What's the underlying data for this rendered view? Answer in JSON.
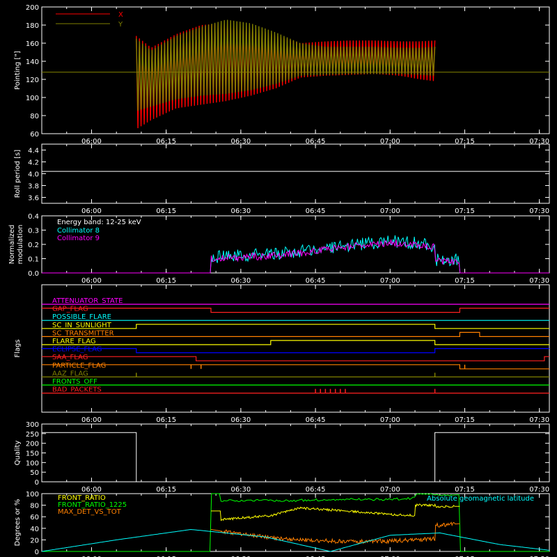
{
  "time_axis": {
    "start": "05:50",
    "end": "07:32",
    "ticks": [
      "06:00",
      "06:15",
      "06:30",
      "06:45",
      "07:00",
      "07:15",
      "07:30"
    ]
  },
  "chart_data": [
    {
      "id": "pointing",
      "type": "line",
      "ylabel": "Pointing [\"]",
      "ylim": [
        60,
        200
      ],
      "yticks": [
        "60",
        "80",
        "100",
        "120",
        "140",
        "160",
        "180",
        "200"
      ],
      "legend": {
        "placement": "top-left",
        "entries": [
          {
            "name": "X",
            "color": "#ff0000"
          },
          {
            "name": "Y",
            "color": "#808000"
          }
        ]
      },
      "baseline": {
        "value": 128,
        "color": "#808000"
      },
      "x_segment": [
        "06:09",
        "07:09"
      ],
      "series": [
        {
          "name": "X",
          "color": "#ff0000",
          "t": [
            "06:09",
            "06:12",
            "06:17",
            "06:22",
            "06:27",
            "06:32",
            "06:37",
            "06:42",
            "06:47",
            "06:52",
            "06:57",
            "07:02",
            "07:06",
            "07:09"
          ],
          "upper": [
            168,
            155,
            170,
            180,
            182,
            178,
            168,
            160,
            162,
            163,
            163,
            162,
            162,
            163
          ],
          "lower": [
            65,
            75,
            88,
            92,
            96,
            102,
            110,
            122,
            124,
            125,
            126,
            124,
            120,
            118
          ]
        },
        {
          "name": "Y",
          "color": "#808000",
          "t": [
            "06:09",
            "06:12",
            "06:17",
            "06:22",
            "06:27",
            "06:32",
            "06:37",
            "06:42",
            "06:47",
            "06:52",
            "06:57",
            "07:02",
            "07:06",
            "07:09"
          ],
          "upper": [
            165,
            152,
            168,
            178,
            186,
            182,
            172,
            160,
            156,
            156,
            156,
            155,
            155,
            156
          ],
          "lower": [
            85,
            90,
            98,
            102,
            104,
            108,
            115,
            124,
            125,
            126,
            126,
            126,
            125,
            124
          ]
        }
      ]
    },
    {
      "id": "roll",
      "type": "line",
      "ylabel": "Roll period [s]",
      "ylim": [
        3.5,
        4.5
      ],
      "yticks": [
        "3.6",
        "3.8",
        "4.0",
        "4.2",
        "4.4"
      ],
      "series": [
        {
          "name": "",
          "color": "#ffffff",
          "t": [
            "05:50",
            "07:32"
          ],
          "y": [
            4.04,
            4.04
          ]
        }
      ]
    },
    {
      "id": "modulation",
      "type": "line",
      "ylabel": [
        "Normalized",
        "modulation"
      ],
      "ylim": [
        0,
        0.4
      ],
      "yticks": [
        "0.0",
        "0.1",
        "0.2",
        "0.3",
        "0.4"
      ],
      "annotation": "Energy band: 12-25 keV",
      "series": [
        {
          "name": "Collimator 8",
          "color": "#00ffff",
          "t": [
            "05:50",
            "06:24",
            "06:24",
            "06:30",
            "06:36",
            "06:42",
            "06:48",
            "06:54",
            "07:00",
            "07:05",
            "07:09",
            "07:09",
            "07:14",
            "07:14",
            "07:32"
          ],
          "y": [
            0,
            0,
            0.11,
            0.12,
            0.13,
            0.15,
            0.18,
            0.2,
            0.22,
            0.21,
            0.19,
            0.09,
            0.09,
            0,
            0
          ]
        },
        {
          "name": "Collimator 9",
          "color": "#ff00ff",
          "t": [
            "05:50",
            "06:24",
            "06:24",
            "06:30",
            "06:36",
            "06:42",
            "06:48",
            "06:54",
            "07:00",
            "07:05",
            "07:09",
            "07:09",
            "07:14",
            "07:14",
            "07:32"
          ],
          "y": [
            0,
            0,
            0.1,
            0.11,
            0.12,
            0.14,
            0.17,
            0.19,
            0.21,
            0.2,
            0.18,
            0.08,
            0.08,
            0,
            0
          ]
        }
      ]
    },
    {
      "id": "flags",
      "type": "line",
      "ylabel": "Flags",
      "series": [
        {
          "name": "ATTENUATOR_STATE",
          "color": "#ff00ff",
          "t": [
            "05:50",
            "07:32"
          ],
          "y": [
            0,
            0
          ]
        },
        {
          "name": "GAP_FLAG",
          "color": "#ff2020",
          "t": [
            "05:50",
            "06:24",
            "06:24",
            "07:14",
            "07:14",
            "07:32"
          ],
          "y": [
            1,
            1,
            0,
            0,
            1,
            1
          ]
        },
        {
          "name": "POSSIBLE_FLARE",
          "color": "#00ffff",
          "t": [
            "05:50",
            "07:32"
          ],
          "y": [
            0,
            0
          ]
        },
        {
          "name": "SC_IN_SUNLIGHT",
          "color": "#ffff00",
          "t": [
            "05:50",
            "06:09",
            "06:09",
            "07:09",
            "07:09",
            "07:32"
          ],
          "y": [
            0,
            0,
            1,
            1,
            0,
            0
          ]
        },
        {
          "name": "SC_TRANSMITTER",
          "color": "#ff8000",
          "t": [
            "05:50",
            "07:14",
            "07:14",
            "07:18",
            "07:18",
            "07:32"
          ],
          "y": [
            0,
            0,
            1,
            1,
            0,
            0
          ]
        },
        {
          "name": "FLARE_FLAG",
          "color": "#ffff00",
          "t": [
            "05:50",
            "06:36",
            "06:36",
            "07:09",
            "07:09",
            "07:32"
          ],
          "y": [
            0,
            0,
            1,
            1,
            0,
            0
          ]
        },
        {
          "name": "ECLIPSE_FLAG",
          "color": "#0000ff",
          "t": [
            "05:50",
            "06:09",
            "06:09",
            "07:09",
            "07:09",
            "07:32"
          ],
          "y": [
            1,
            1,
            0,
            0,
            1,
            1
          ]
        },
        {
          "name": "SAA_FLAG",
          "color": "#ff2020",
          "t": [
            "05:50",
            "06:21",
            "06:21",
            "07:31",
            "07:31",
            "07:32"
          ],
          "y": [
            1,
            1,
            0,
            0,
            1,
            1
          ]
        },
        {
          "name": "PARTICLE_FLAG",
          "color": "#ff8000",
          "t": [
            "05:50",
            "07:14",
            "07:14",
            "07:32"
          ],
          "y": [
            1,
            1,
            0,
            0
          ],
          "spikes": [
            "06:20",
            "06:22",
            "07:15"
          ]
        },
        {
          "name": "AAZ_FLAG",
          "color": "#808000",
          "t": [
            "05:50",
            "07:32"
          ],
          "y": [
            0,
            0
          ],
          "spikes": [
            "06:09",
            "07:09"
          ]
        },
        {
          "name": "FRONTS_OFF",
          "color": "#00ff00",
          "t": [
            "05:50",
            "07:32"
          ],
          "y": [
            0,
            0
          ]
        },
        {
          "name": "BAD_PACKETS",
          "color": "#ff2020",
          "t": [
            "05:50",
            "07:32"
          ],
          "y": [
            0,
            0
          ],
          "spikes": [
            "06:45",
            "06:46",
            "06:47",
            "06:48",
            "06:49",
            "06:50",
            "06:51",
            "07:09"
          ]
        }
      ]
    },
    {
      "id": "quality",
      "type": "line",
      "ylabel": "Quality",
      "ylim": [
        0,
        300
      ],
      "yticks": [
        "0",
        "50",
        "100",
        "150",
        "200",
        "250",
        "300"
      ],
      "series": [
        {
          "name": "",
          "color": "#ffffff",
          "t": [
            "05:50",
            "06:09",
            "06:09",
            "07:09",
            "07:09",
            "07:32"
          ],
          "y": [
            256,
            256,
            0,
            0,
            256,
            256
          ]
        }
      ]
    },
    {
      "id": "bottom",
      "type": "line",
      "ylabel": "Degrees or %",
      "ylim": [
        0,
        100
      ],
      "yticks": [
        "0",
        "20",
        "40",
        "60",
        "80",
        "100"
      ],
      "legend": {
        "placement": "top-left",
        "entries": [
          {
            "name": "FRONT_RATIO",
            "color": "#ffff00"
          },
          {
            "name": "FRONT_RATIO_1225",
            "color": "#00ff00"
          },
          {
            "name": "MAX_DET_VS_TOT",
            "color": "#ff8000"
          }
        ]
      },
      "right_label": {
        "text": "Absolute geomagnetic latitude",
        "color": "#00ffff"
      },
      "series": [
        {
          "name": "FRONT_RATIO_1225",
          "color": "#00ff00",
          "t": [
            "05:50",
            "06:24",
            "06:24",
            "06:26",
            "06:26",
            "06:40",
            "06:50",
            "07:00",
            "07:05",
            "07:05",
            "07:09",
            "07:09",
            "07:14",
            "07:14",
            "07:32"
          ],
          "y": [
            0,
            0,
            100,
            100,
            88,
            88,
            90,
            90,
            92,
            100,
            100,
            98,
            98,
            0,
            0
          ]
        },
        {
          "name": "FRONT_RATIO",
          "color": "#ffff00",
          "t": [
            "06:24",
            "06:26",
            "06:26",
            "06:30",
            "06:36",
            "06:42",
            "06:48",
            "06:54",
            "07:00",
            "07:05",
            "07:05",
            "07:09",
            "07:09",
            "07:14"
          ],
          "y": [
            70,
            70,
            55,
            58,
            62,
            75,
            72,
            68,
            64,
            62,
            80,
            80,
            78,
            78
          ]
        },
        {
          "name": "MAX_DET_VS_TOT",
          "color": "#ff8000",
          "t": [
            "06:24",
            "06:30",
            "06:36",
            "06:42",
            "06:48",
            "06:54",
            "07:00",
            "07:05",
            "07:09",
            "07:09",
            "07:14"
          ],
          "y": [
            38,
            30,
            24,
            20,
            18,
            17,
            18,
            20,
            22,
            45,
            48
          ]
        },
        {
          "name": "Absolute geomagnetic latitude",
          "color": "#00ffff",
          "t": [
            "05:50",
            "06:05",
            "06:20",
            "06:35",
            "06:48",
            "07:00",
            "07:10",
            "07:22",
            "07:32"
          ],
          "y": [
            0,
            20,
            38,
            25,
            0,
            28,
            32,
            12,
            2
          ]
        }
      ]
    }
  ]
}
